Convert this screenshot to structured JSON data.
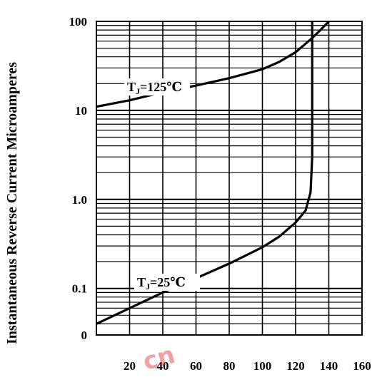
{
  "chart_data": {
    "type": "line",
    "title": "",
    "xlabel": "",
    "ylabel": "Instantaneous Reverse Current Microamperes",
    "x_axis_type": "linear",
    "y_axis_type": "log",
    "xlim": [
      0,
      140
    ],
    "ylim": [
      0.03,
      100
    ],
    "x_ticks": [
      20,
      40,
      60,
      80,
      100,
      120,
      140,
      160
    ],
    "x_tick_labels": [
      "20",
      "40",
      "60",
      "80",
      "100",
      "120",
      "140",
      "160"
    ],
    "y_tick_labels": [
      {
        "value": 100,
        "label": "100"
      },
      {
        "value": 10,
        "label": "10"
      },
      {
        "value": 1,
        "label": "1.0"
      },
      {
        "value": 0.1,
        "label": "0.1"
      },
      {
        "value": 0.03,
        "label": "0"
      }
    ],
    "grid": true,
    "legend": "none",
    "series": [
      {
        "name": "TJ=125°C",
        "annotation": {
          "main": "T",
          "sub": "J",
          "rest": "=125℃"
        },
        "points": [
          [
            0,
            11
          ],
          [
            20,
            13
          ],
          [
            40,
            16
          ],
          [
            60,
            19
          ],
          [
            80,
            23
          ],
          [
            100,
            29
          ],
          [
            110,
            35
          ],
          [
            120,
            45
          ],
          [
            130,
            65
          ],
          [
            135,
            80
          ],
          [
            140,
            100
          ]
        ]
      },
      {
        "name": "TJ=25°C",
        "annotation": {
          "main": "T",
          "sub": "J",
          "rest": "=25℃"
        },
        "points": [
          [
            0,
            0.04
          ],
          [
            20,
            0.06
          ],
          [
            40,
            0.09
          ],
          [
            60,
            0.13
          ],
          [
            80,
            0.19
          ],
          [
            100,
            0.29
          ],
          [
            110,
            0.38
          ],
          [
            120,
            0.55
          ],
          [
            126,
            0.75
          ],
          [
            129,
            1.2
          ],
          [
            130,
            3
          ],
          [
            130,
            20
          ],
          [
            130,
            100
          ]
        ]
      }
    ]
  },
  "watermark": "cn"
}
